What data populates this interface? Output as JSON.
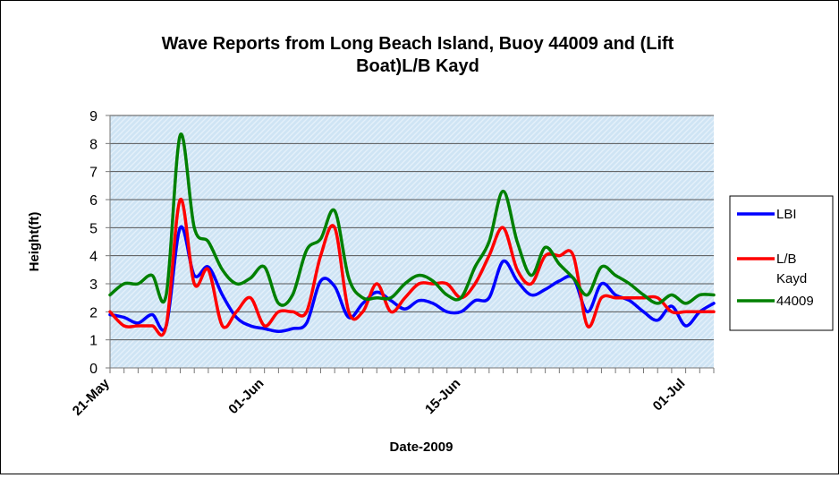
{
  "chart_data": {
    "type": "line",
    "title_lines": [
      "Wave Reports from Long Beach Island, Buoy 44009 and (Lift",
      "Boat)L/B Kayd"
    ],
    "xlabel": "Date-2009",
    "ylabel": "Height(ft)",
    "ylim": [
      0,
      9
    ],
    "yticks": [
      0,
      1,
      2,
      3,
      4,
      5,
      6,
      7,
      8,
      9
    ],
    "x_range_days": [
      0,
      43
    ],
    "xtick_labels": [
      {
        "day": 0,
        "label": "21-May"
      },
      {
        "day": 11,
        "label": "01-Jun"
      },
      {
        "day": 25,
        "label": "15-Jun"
      },
      {
        "day": 41,
        "label": "01-Jul"
      }
    ],
    "grid": "horizontal",
    "legend_position": "right",
    "series": [
      {
        "name": "LBI",
        "color": "#0000ff",
        "legend_lines": [
          "LBI"
        ],
        "x": [
          0,
          1,
          2,
          3,
          4,
          5,
          6,
          7,
          8,
          9,
          10,
          11,
          12,
          13,
          14,
          15,
          16,
          17,
          18,
          19,
          20,
          21,
          22,
          23,
          24,
          25,
          26,
          27,
          28,
          29,
          30,
          31,
          32,
          33,
          34,
          35,
          36,
          37,
          38,
          39,
          40,
          41,
          42,
          43
        ],
        "y": [
          1.9,
          1.8,
          1.6,
          1.9,
          1.5,
          5.0,
          3.3,
          3.6,
          2.6,
          1.8,
          1.5,
          1.4,
          1.3,
          1.4,
          1.6,
          3.1,
          2.9,
          1.8,
          2.3,
          2.7,
          2.4,
          2.1,
          2.4,
          2.3,
          2.0,
          2.0,
          2.4,
          2.5,
          3.8,
          3.1,
          2.6,
          2.8,
          3.1,
          3.2,
          2.0,
          3.0,
          2.6,
          2.4,
          2.0,
          1.7,
          2.2,
          1.5,
          2.0,
          2.3
        ]
      },
      {
        "name": "L/B Kayd",
        "color": "#ff0000",
        "legend_lines": [
          "L/B",
          "Kayd"
        ],
        "x": [
          0,
          1,
          2,
          3,
          4,
          5,
          6,
          7,
          8,
          9,
          10,
          11,
          12,
          13,
          14,
          15,
          16,
          17,
          18,
          19,
          20,
          21,
          22,
          23,
          24,
          25,
          26,
          27,
          28,
          29,
          30,
          31,
          32,
          33,
          34,
          35,
          36,
          37,
          38,
          39,
          40,
          41,
          42,
          43
        ],
        "y": [
          2.0,
          1.5,
          1.5,
          1.5,
          1.5,
          6.0,
          3.0,
          3.5,
          1.5,
          2.0,
          2.5,
          1.5,
          2.0,
          2.0,
          2.0,
          4.0,
          5.0,
          2.0,
          2.0,
          3.0,
          2.0,
          2.5,
          3.0,
          3.0,
          3.0,
          2.5,
          3.0,
          4.0,
          5.0,
          3.5,
          3.0,
          4.0,
          4.0,
          4.0,
          1.5,
          2.5,
          2.5,
          2.5,
          2.5,
          2.5,
          2.0,
          2.0,
          2.0,
          2.0
        ]
      },
      {
        "name": "44009",
        "color": "#008000",
        "legend_lines": [
          "44009"
        ],
        "x": [
          0,
          1,
          2,
          3,
          4,
          5,
          6,
          7,
          8,
          9,
          10,
          11,
          12,
          13,
          14,
          15,
          16,
          17,
          18,
          19,
          20,
          21,
          22,
          23,
          24,
          25,
          26,
          27,
          28,
          29,
          30,
          31,
          32,
          33,
          34,
          35,
          36,
          37,
          38,
          39,
          40,
          41,
          42,
          43
        ],
        "y": [
          2.6,
          3.0,
          3.0,
          3.3,
          2.6,
          8.3,
          5.0,
          4.5,
          3.5,
          3.0,
          3.2,
          3.6,
          2.3,
          2.6,
          4.2,
          4.6,
          5.6,
          3.2,
          2.5,
          2.5,
          2.5,
          3.0,
          3.3,
          3.1,
          2.6,
          2.5,
          3.6,
          4.5,
          6.3,
          4.5,
          3.3,
          4.3,
          3.7,
          3.2,
          2.6,
          3.6,
          3.3,
          3.0,
          2.6,
          2.3,
          2.6,
          2.3,
          2.6,
          2.6
        ]
      }
    ]
  }
}
